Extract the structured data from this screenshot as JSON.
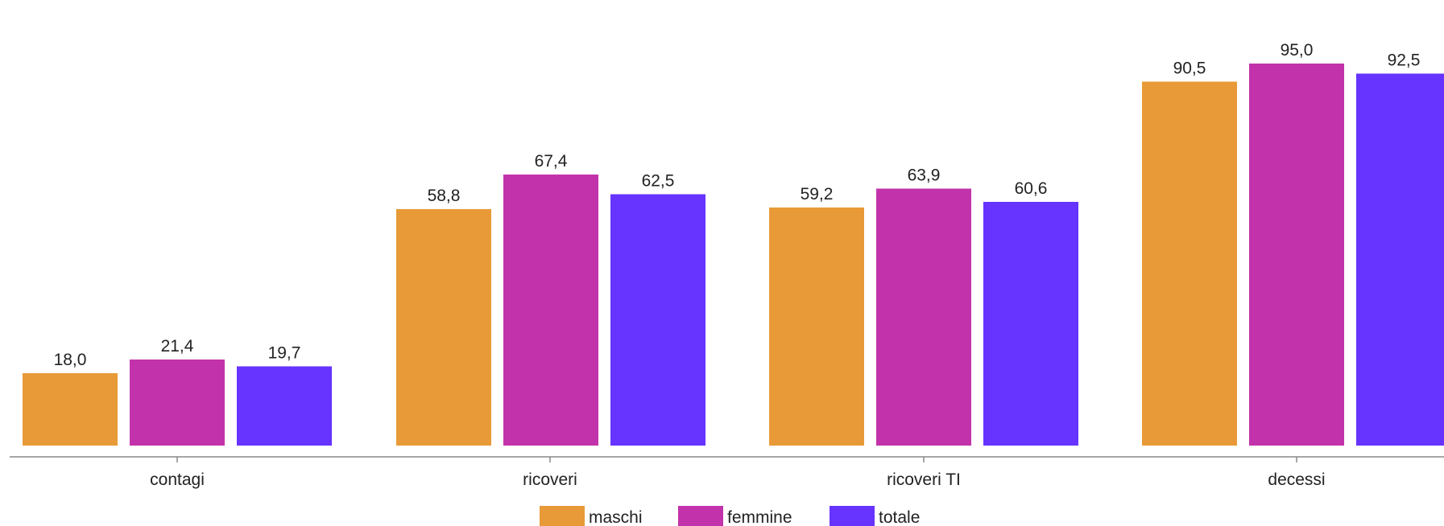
{
  "chart_data": {
    "type": "bar",
    "categories": [
      "contagi",
      "ricoveri",
      "ricoveri TI",
      "decessi"
    ],
    "series": [
      {
        "name": "maschi",
        "color": "#E89A38",
        "values": [
          18.0,
          58.8,
          59.2,
          90.5
        ],
        "labels": [
          "18,0",
          "58,8",
          "59,2",
          "90,5"
        ]
      },
      {
        "name": "femmine",
        "color": "#C233AB",
        "values": [
          21.4,
          67.4,
          63.9,
          95.0
        ],
        "labels": [
          "21,4",
          "67,4",
          "63,9",
          "95,0"
        ]
      },
      {
        "name": "totale",
        "color": "#6633FF",
        "values": [
          19.7,
          62.5,
          60.6,
          92.5
        ],
        "labels": [
          "19,7",
          "62,5",
          "60,6",
          "92,5"
        ]
      }
    ],
    "ylim": [
      0,
      100
    ],
    "grid": false,
    "legend": "bottom-center"
  }
}
